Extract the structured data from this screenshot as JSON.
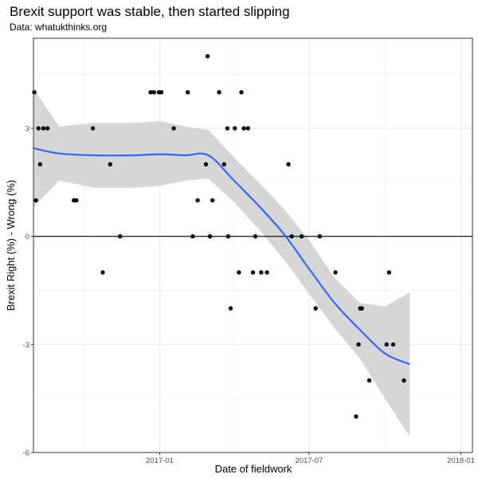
{
  "chart_data": {
    "type": "scatter",
    "title": "Brexit support was stable, then started slipping",
    "subtitle": "Data: whatukthinks.org",
    "xlabel": "Date of fieldwork",
    "ylabel": "Brexit Right (%) - Wrong (%)",
    "x_domain": [
      "2016-08-01",
      "2018-01-15"
    ],
    "y_domain": [
      -6,
      5.5
    ],
    "x_ticks": [
      {
        "date": "2017-01-01",
        "label": "2017-01"
      },
      {
        "date": "2017-07-01",
        "label": "2017-07"
      },
      {
        "date": "2018-01-01",
        "label": "2018-01"
      }
    ],
    "y_ticks": [
      -6,
      -3,
      0,
      3
    ],
    "y_tick_labels": [
      "-6",
      "-3",
      "0",
      "3"
    ],
    "reference_line_y": 0,
    "points": [
      {
        "x": "2016-08-02",
        "y": 4
      },
      {
        "x": "2016-08-04",
        "y": 1
      },
      {
        "x": "2016-08-07",
        "y": 3
      },
      {
        "x": "2016-08-09",
        "y": 2
      },
      {
        "x": "2016-08-13",
        "y": 3
      },
      {
        "x": "2016-08-18",
        "y": 3
      },
      {
        "x": "2016-09-19",
        "y": 1
      },
      {
        "x": "2016-09-22",
        "y": 1
      },
      {
        "x": "2016-10-12",
        "y": 3
      },
      {
        "x": "2016-10-24",
        "y": -1
      },
      {
        "x": "2016-11-02",
        "y": 2
      },
      {
        "x": "2016-11-14",
        "y": 0
      },
      {
        "x": "2016-12-21",
        "y": 4
      },
      {
        "x": "2016-12-25",
        "y": 4
      },
      {
        "x": "2016-12-31",
        "y": 4
      },
      {
        "x": "2017-01-03",
        "y": 4
      },
      {
        "x": "2017-01-18",
        "y": 3
      },
      {
        "x": "2017-02-04",
        "y": 4
      },
      {
        "x": "2017-02-10",
        "y": 0
      },
      {
        "x": "2017-02-16",
        "y": 1
      },
      {
        "x": "2017-02-26",
        "y": 2
      },
      {
        "x": "2017-02-28",
        "y": 5
      },
      {
        "x": "2017-03-03",
        "y": 0
      },
      {
        "x": "2017-03-06",
        "y": 1
      },
      {
        "x": "2017-03-14",
        "y": 4
      },
      {
        "x": "2017-03-20",
        "y": 2
      },
      {
        "x": "2017-03-24",
        "y": 3
      },
      {
        "x": "2017-03-25",
        "y": 0
      },
      {
        "x": "2017-03-28",
        "y": -2
      },
      {
        "x": "2017-04-02",
        "y": 3
      },
      {
        "x": "2017-04-07",
        "y": -1
      },
      {
        "x": "2017-04-10",
        "y": 4
      },
      {
        "x": "2017-04-13",
        "y": 3
      },
      {
        "x": "2017-04-18",
        "y": 3
      },
      {
        "x": "2017-04-24",
        "y": -1
      },
      {
        "x": "2017-04-27",
        "y": 0
      },
      {
        "x": "2017-05-04",
        "y": -1
      },
      {
        "x": "2017-05-11",
        "y": -1
      },
      {
        "x": "2017-06-06",
        "y": 2
      },
      {
        "x": "2017-06-10",
        "y": 0
      },
      {
        "x": "2017-06-22",
        "y": 0
      },
      {
        "x": "2017-07-09",
        "y": -2
      },
      {
        "x": "2017-07-14",
        "y": 0
      },
      {
        "x": "2017-08-02",
        "y": -1
      },
      {
        "x": "2017-08-27",
        "y": -5
      },
      {
        "x": "2017-08-30",
        "y": -3
      },
      {
        "x": "2017-09-01",
        "y": -2
      },
      {
        "x": "2017-09-03",
        "y": -2
      },
      {
        "x": "2017-09-12",
        "y": -4
      },
      {
        "x": "2017-10-03",
        "y": -3
      },
      {
        "x": "2017-10-06",
        "y": -1
      },
      {
        "x": "2017-10-11",
        "y": -3
      },
      {
        "x": "2017-10-24",
        "y": -4
      }
    ],
    "smooth_fit": [
      {
        "x": "2016-08-01",
        "y": 2.45,
        "lo": 0.8,
        "hi": 4.1
      },
      {
        "x": "2016-09-01",
        "y": 2.3,
        "lo": 1.55,
        "hi": 3.05
      },
      {
        "x": "2016-10-15",
        "y": 2.25,
        "lo": 1.35,
        "hi": 3.15
      },
      {
        "x": "2016-12-01",
        "y": 2.25,
        "lo": 1.35,
        "hi": 3.15
      },
      {
        "x": "2017-01-01",
        "y": 2.28,
        "lo": 1.4,
        "hi": 3.2
      },
      {
        "x": "2017-02-01",
        "y": 2.25,
        "lo": 1.55,
        "hi": 3.05
      },
      {
        "x": "2017-03-01",
        "y": 2.25,
        "lo": 1.6,
        "hi": 2.95
      },
      {
        "x": "2017-04-01",
        "y": 1.55,
        "lo": 0.95,
        "hi": 2.2
      },
      {
        "x": "2017-05-01",
        "y": 0.85,
        "lo": 0.2,
        "hi": 1.5
      },
      {
        "x": "2017-06-01",
        "y": 0.05,
        "lo": -0.65,
        "hi": 0.75
      },
      {
        "x": "2017-07-01",
        "y": -0.9,
        "lo": -1.6,
        "hi": -0.1
      },
      {
        "x": "2017-08-01",
        "y": -1.85,
        "lo": -2.55,
        "hi": -1.15
      },
      {
        "x": "2017-09-01",
        "y": -2.6,
        "lo": -3.4,
        "hi": -1.85
      },
      {
        "x": "2017-10-01",
        "y": -3.25,
        "lo": -4.5,
        "hi": -1.95
      },
      {
        "x": "2017-10-31",
        "y": -3.55,
        "lo": -5.55,
        "hi": -1.55
      }
    ],
    "colors": {
      "points": "#000000",
      "smooth_line": "#3366ff",
      "confidence_band": "#d2d2d2",
      "grid": "#ebebeb",
      "reference_line": "#000000",
      "panel_border": "#333333"
    }
  }
}
